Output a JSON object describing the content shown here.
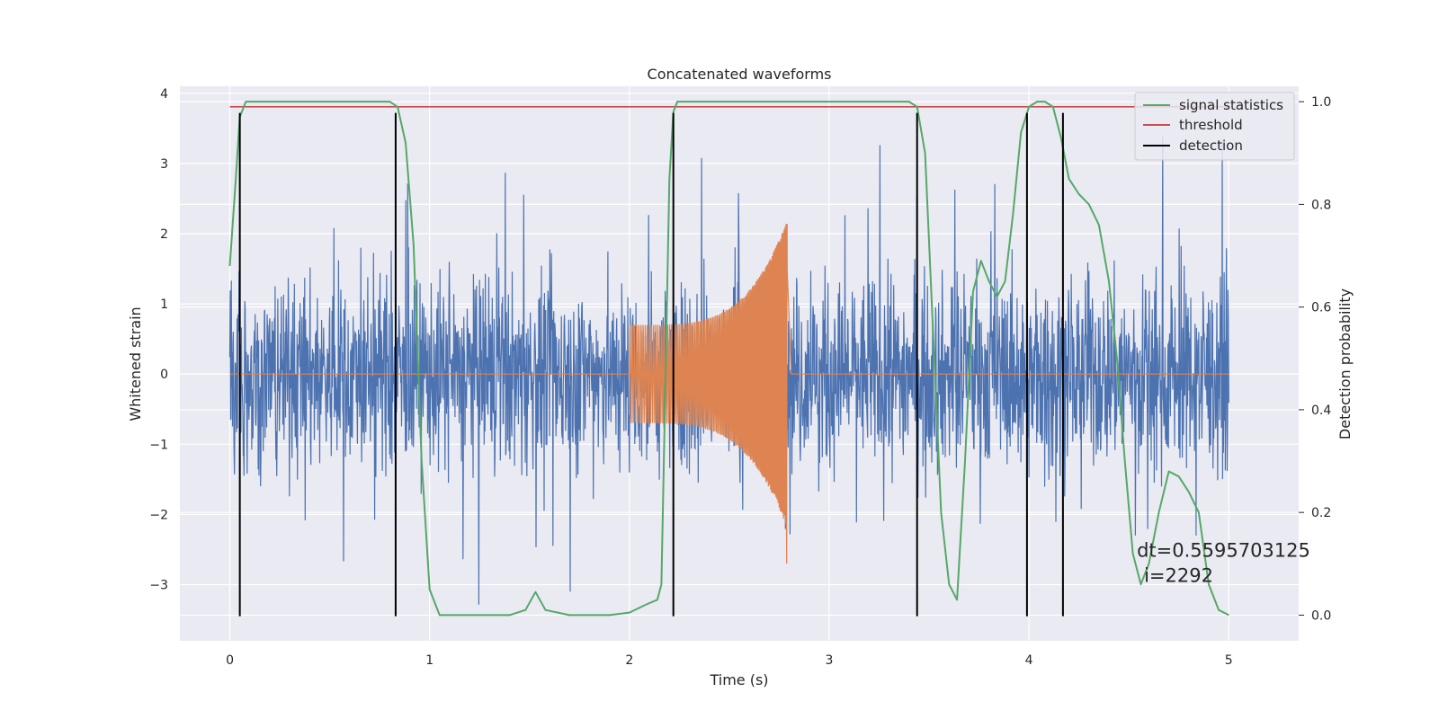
{
  "chart_data": {
    "type": "line",
    "title": "Concatenated waveforms",
    "xlabel": "Time (s)",
    "ylabel": "Whitened strain",
    "ylabel_right": "Detection probability",
    "xlim": [
      -0.25,
      5.35
    ],
    "ylim": [
      -3.8,
      4.1
    ],
    "ylim_right": [
      -0.05,
      1.03
    ],
    "x_ticks": [
      0,
      1,
      2,
      3,
      4,
      5
    ],
    "y_ticks": [
      -3,
      -2,
      -1,
      0,
      1,
      2,
      3,
      4
    ],
    "y_ticks_right": [
      0.0,
      0.2,
      0.4,
      0.6,
      0.8,
      1.0
    ],
    "x_tick_labels": [
      "0",
      "1",
      "2",
      "3",
      "4",
      "5"
    ],
    "y_tick_labels": [
      "−3",
      "−2",
      "−1",
      "0",
      "1",
      "2",
      "3",
      "4"
    ],
    "y_tick_labels_right": [
      "0.0",
      "0.2",
      "0.4",
      "0.6",
      "0.8",
      "1.0"
    ],
    "grid": true,
    "legend_position": "top-right",
    "legend": [
      {
        "label": "signal statistics",
        "color": "#55a868"
      },
      {
        "label": "threshold",
        "color": "#c44e52"
      },
      {
        "label": "detection",
        "color": "#000000"
      }
    ],
    "colors": {
      "whitened": "#4c72b0",
      "template": "#dd8452",
      "background": "#eaeaf2"
    },
    "whitened_strain": {
      "x_range": [
        0,
        5
      ],
      "typical_amplitude": 1.2,
      "max_abs": 3.5
    },
    "template_waveform": {
      "x_start": 2.0,
      "x_end": 2.79,
      "start_amplitude": 0.7,
      "end_amplitude": 2.2,
      "min_value": -2.7
    },
    "signal_statistics": {
      "axis": "right",
      "x": [
        0.0,
        0.03,
        0.05,
        0.08,
        0.12,
        0.2,
        0.4,
        0.6,
        0.8,
        0.84,
        0.88,
        0.92,
        0.96,
        1.0,
        1.05,
        1.2,
        1.4,
        1.48,
        1.53,
        1.58,
        1.7,
        1.9,
        2.0,
        2.08,
        2.14,
        2.16,
        2.18,
        2.2,
        2.22,
        2.24,
        2.28,
        2.4,
        3.0,
        3.4,
        3.44,
        3.48,
        3.52,
        3.56,
        3.6,
        3.64,
        3.68,
        3.72,
        3.76,
        3.8,
        3.84,
        3.88,
        3.92,
        3.96,
        4.0,
        4.04,
        4.08,
        4.12,
        4.16,
        4.2,
        4.25,
        4.3,
        4.35,
        4.4,
        4.44,
        4.48,
        4.52,
        4.56,
        4.6,
        4.65,
        4.7,
        4.75,
        4.8,
        4.85,
        4.9,
        4.95,
        5.0
      ],
      "y": [
        0.68,
        0.85,
        0.97,
        1.0,
        1.0,
        1.0,
        1.0,
        1.0,
        1.0,
        0.99,
        0.92,
        0.72,
        0.3,
        0.05,
        0.0,
        0.0,
        0.0,
        0.01,
        0.045,
        0.01,
        0.0,
        0.0,
        0.005,
        0.02,
        0.03,
        0.06,
        0.45,
        0.85,
        0.98,
        1.0,
        1.0,
        1.0,
        1.0,
        1.0,
        0.99,
        0.9,
        0.55,
        0.2,
        0.06,
        0.03,
        0.3,
        0.63,
        0.69,
        0.65,
        0.62,
        0.65,
        0.78,
        0.94,
        0.99,
        1.0,
        1.0,
        0.99,
        0.93,
        0.85,
        0.82,
        0.8,
        0.76,
        0.65,
        0.5,
        0.3,
        0.12,
        0.06,
        0.1,
        0.2,
        0.28,
        0.27,
        0.24,
        0.2,
        0.06,
        0.01,
        0.0
      ]
    },
    "threshold": {
      "axis": "right",
      "value": 0.99,
      "x_range": [
        0,
        5
      ]
    },
    "detections": [
      0.05,
      0.83,
      2.22,
      3.44,
      3.99,
      4.17
    ],
    "detection_y_range": [
      -3.45,
      3.72
    ],
    "annotation": {
      "line1": "dt=0.5595703125",
      "line2": "i=2292",
      "x": 4.54,
      "y": -2.6
    }
  }
}
